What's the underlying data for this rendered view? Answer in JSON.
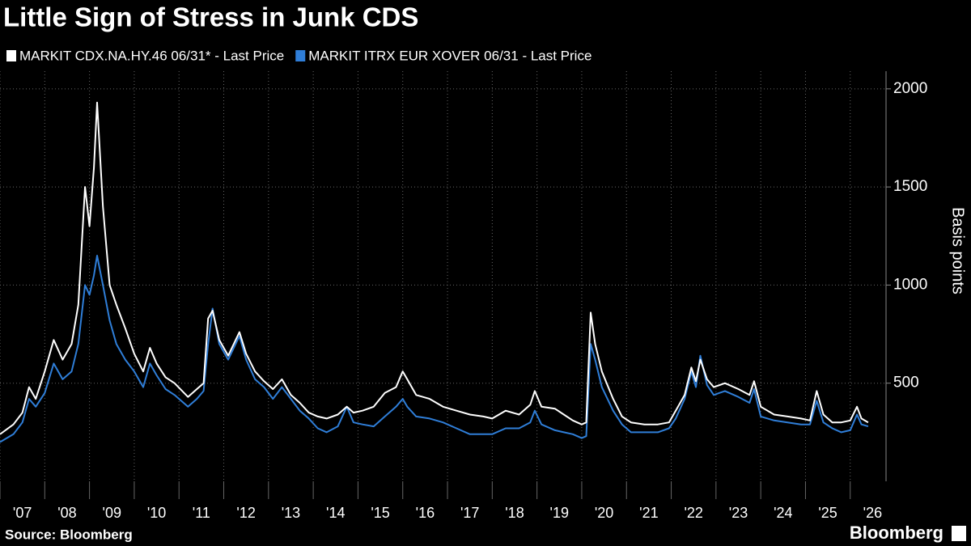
{
  "chart_data": {
    "type": "line",
    "title": "Little Sign of Stress in Junk CDS",
    "y_label": "Basis points",
    "source": "Source: Bloomberg",
    "brand": "Bloomberg",
    "x": [
      2007.0,
      2007.3,
      2007.5,
      2007.65,
      2007.8,
      2008.0,
      2008.2,
      2008.4,
      2008.6,
      2008.75,
      2008.9,
      2009.0,
      2009.1,
      2009.17,
      2009.3,
      2009.45,
      2009.6,
      2009.8,
      2010.0,
      2010.2,
      2010.35,
      2010.5,
      2010.7,
      2010.9,
      2011.2,
      2011.4,
      2011.55,
      2011.65,
      2011.75,
      2011.9,
      2012.1,
      2012.35,
      2012.5,
      2012.7,
      2012.9,
      2013.1,
      2013.3,
      2013.5,
      2013.7,
      2013.9,
      2014.1,
      2014.3,
      2014.55,
      2014.75,
      2014.9,
      2015.1,
      2015.35,
      2015.6,
      2015.85,
      2016.0,
      2016.1,
      2016.3,
      2016.6,
      2016.9,
      2017.2,
      2017.5,
      2017.8,
      2018.0,
      2018.3,
      2018.6,
      2018.85,
      2018.95,
      2019.1,
      2019.4,
      2019.6,
      2019.8,
      2020.0,
      2020.1,
      2020.2,
      2020.3,
      2020.45,
      2020.7,
      2020.9,
      2021.1,
      2021.4,
      2021.7,
      2021.95,
      2022.1,
      2022.3,
      2022.45,
      2022.55,
      2022.65,
      2022.8,
      2022.95,
      2023.2,
      2023.5,
      2023.75,
      2023.85,
      2024.0,
      2024.3,
      2024.6,
      2024.9,
      2025.1,
      2025.25,
      2025.4,
      2025.6,
      2025.8,
      2026.0,
      2026.15,
      2026.25,
      2026.4
    ],
    "series": [
      {
        "name": "MARKIT CDX.NA.HY.46 06/31* - Last Price",
        "color": "#ffffff",
        "values": [
          240,
          290,
          350,
          480,
          420,
          560,
          720,
          620,
          700,
          900,
          1500,
          1300,
          1600,
          1930,
          1400,
          1000,
          900,
          780,
          650,
          560,
          680,
          600,
          530,
          500,
          430,
          470,
          500,
          830,
          870,
          720,
          640,
          760,
          650,
          560,
          510,
          470,
          520,
          440,
          400,
          350,
          330,
          320,
          340,
          380,
          350,
          360,
          380,
          450,
          480,
          560,
          520,
          440,
          420,
          380,
          360,
          340,
          330,
          320,
          360,
          340,
          390,
          460,
          380,
          370,
          340,
          310,
          290,
          300,
          860,
          700,
          560,
          420,
          330,
          300,
          290,
          290,
          300,
          360,
          440,
          580,
          510,
          620,
          520,
          480,
          500,
          470,
          440,
          510,
          380,
          340,
          330,
          320,
          310,
          460,
          340,
          300,
          300,
          310,
          380,
          320,
          300
        ]
      },
      {
        "name": "MARKIT ITRX EUR XOVER 06/31 - Last Price",
        "color": "#2f7ed8",
        "values": [
          200,
          240,
          300,
          420,
          380,
          450,
          600,
          520,
          560,
          700,
          1000,
          950,
          1050,
          1150,
          1000,
          820,
          700,
          620,
          560,
          480,
          600,
          540,
          470,
          440,
          380,
          420,
          460,
          700,
          880,
          700,
          620,
          740,
          620,
          520,
          480,
          420,
          480,
          420,
          360,
          320,
          270,
          250,
          280,
          380,
          300,
          290,
          280,
          330,
          380,
          420,
          380,
          330,
          320,
          300,
          270,
          240,
          240,
          240,
          270,
          270,
          300,
          360,
          290,
          260,
          250,
          240,
          220,
          230,
          700,
          620,
          480,
          360,
          290,
          250,
          250,
          250,
          270,
          320,
          420,
          560,
          480,
          640,
          490,
          440,
          460,
          430,
          400,
          470,
          330,
          310,
          300,
          290,
          290,
          410,
          300,
          270,
          250,
          260,
          340,
          290,
          280
        ]
      }
    ],
    "xlim": [
      2007,
      2026.8
    ],
    "xticks": [
      {
        "value": 2007,
        "label": "'07"
      },
      {
        "value": 2008,
        "label": "'08"
      },
      {
        "value": 2009,
        "label": "'09"
      },
      {
        "value": 2010,
        "label": "'10"
      },
      {
        "value": 2011,
        "label": "'11"
      },
      {
        "value": 2012,
        "label": "'12"
      },
      {
        "value": 2013,
        "label": "'13"
      },
      {
        "value": 2014,
        "label": "'14"
      },
      {
        "value": 2015,
        "label": "'15"
      },
      {
        "value": 2016,
        "label": "'16"
      },
      {
        "value": 2017,
        "label": "'17"
      },
      {
        "value": 2018,
        "label": "'18"
      },
      {
        "value": 2019,
        "label": "'19"
      },
      {
        "value": 2020,
        "label": "'20"
      },
      {
        "value": 2021,
        "label": "'21"
      },
      {
        "value": 2022,
        "label": "'22"
      },
      {
        "value": 2023,
        "label": "'23"
      },
      {
        "value": 2024,
        "label": "'24"
      },
      {
        "value": 2025,
        "label": "'25"
      },
      {
        "value": 2026,
        "label": "'26"
      }
    ],
    "ylim": [
      0,
      2090
    ],
    "yticks": [
      500,
      1000,
      1500,
      2000
    ],
    "grid": true
  }
}
